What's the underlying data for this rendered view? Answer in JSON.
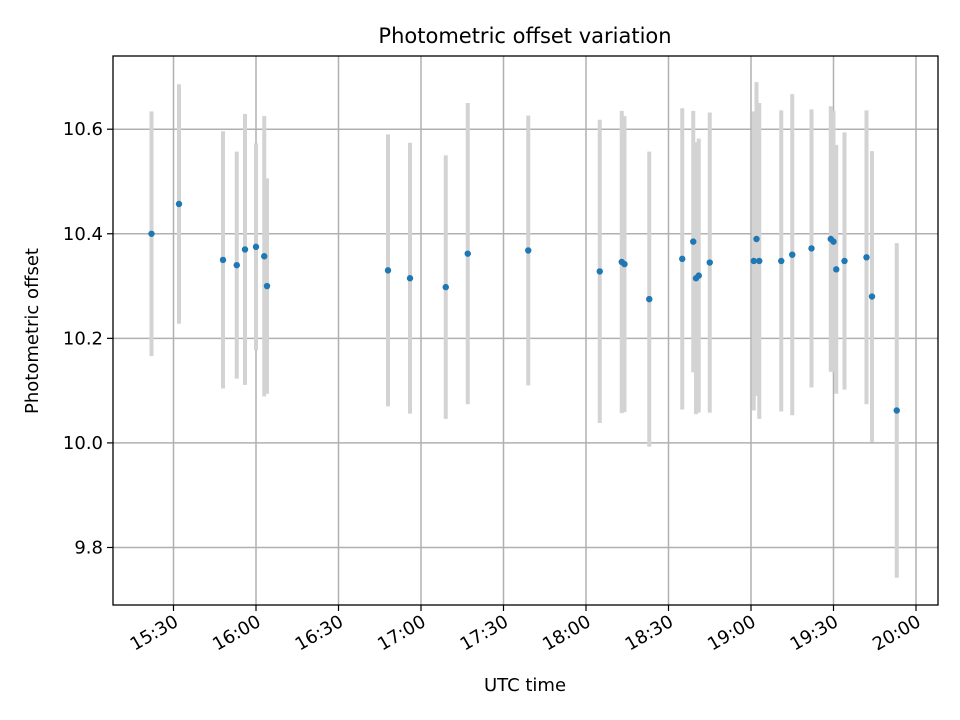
{
  "chart_data": {
    "type": "scatter",
    "title": "Photometric offset variation",
    "xlabel": "UTC time",
    "ylabel": "Photometric offset",
    "xlim": [
      "15:08",
      "20:08"
    ],
    "ylim": [
      9.69,
      10.74
    ],
    "grid": true,
    "x_tick_labels": [
      "15:30",
      "16:00",
      "16:30",
      "17:00",
      "17:30",
      "18:00",
      "18:30",
      "19:00",
      "19:30",
      "20:00"
    ],
    "y_tick_labels": [
      "9.8",
      "10.0",
      "10.2",
      "10.4",
      "10.6"
    ],
    "y_ticks": [
      9.8,
      10.0,
      10.2,
      10.4,
      10.6
    ],
    "colors": {
      "points": "#1f77b4",
      "errorbars": "#d3d3d3",
      "grid": "#b0b0b0"
    },
    "points": [
      {
        "x": "15:22",
        "y": 10.4,
        "yerr": 0.234
      },
      {
        "x": "15:32",
        "y": 10.457,
        "yerr": 0.229
      },
      {
        "x": "15:48",
        "y": 10.35,
        "yerr": 0.246
      },
      {
        "x": "15:53",
        "y": 10.34,
        "yerr": 0.217
      },
      {
        "x": "15:56",
        "y": 10.37,
        "yerr": 0.259
      },
      {
        "x": "16:00",
        "y": 10.375,
        "yerr": 0.198
      },
      {
        "x": "16:03",
        "y": 10.357,
        "yerr": 0.268
      },
      {
        "x": "16:04",
        "y": 10.3,
        "yerr": 0.206
      },
      {
        "x": "16:48",
        "y": 10.33,
        "yerr": 0.26
      },
      {
        "x": "16:56",
        "y": 10.315,
        "yerr": 0.259
      },
      {
        "x": "17:09",
        "y": 10.298,
        "yerr": 0.252
      },
      {
        "x": "17:17",
        "y": 10.362,
        "yerr": 0.288
      },
      {
        "x": "17:39",
        "y": 10.368,
        "yerr": 0.258
      },
      {
        "x": "18:05",
        "y": 10.328,
        "yerr": 0.29
      },
      {
        "x": "18:13",
        "y": 10.346,
        "yerr": 0.289
      },
      {
        "x": "18:14",
        "y": 10.342,
        "yerr": 0.283
      },
      {
        "x": "18:23",
        "y": 10.275,
        "yerr": 0.282
      },
      {
        "x": "18:35",
        "y": 10.352,
        "yerr": 0.288
      },
      {
        "x": "18:39",
        "y": 10.385,
        "yerr": 0.25
      },
      {
        "x": "18:40",
        "y": 10.315,
        "yerr": 0.26
      },
      {
        "x": "18:41",
        "y": 10.32,
        "yerr": 0.262
      },
      {
        "x": "18:45",
        "y": 10.345,
        "yerr": 0.287
      },
      {
        "x": "19:01",
        "y": 10.348,
        "yerr": 0.286
      },
      {
        "x": "19:02",
        "y": 10.39,
        "yerr": 0.3
      },
      {
        "x": "19:03",
        "y": 10.348,
        "yerr": 0.302
      },
      {
        "x": "19:11",
        "y": 10.348,
        "yerr": 0.288
      },
      {
        "x": "19:15",
        "y": 10.36,
        "yerr": 0.307
      },
      {
        "x": "19:22",
        "y": 10.372,
        "yerr": 0.266
      },
      {
        "x": "19:29",
        "y": 10.39,
        "yerr": 0.254
      },
      {
        "x": "19:30",
        "y": 10.385,
        "yerr": 0.25
      },
      {
        "x": "19:31",
        "y": 10.332,
        "yerr": 0.238
      },
      {
        "x": "19:34",
        "y": 10.348,
        "yerr": 0.246
      },
      {
        "x": "19:42",
        "y": 10.355,
        "yerr": 0.281
      },
      {
        "x": "19:44",
        "y": 10.28,
        "yerr": 0.278
      },
      {
        "x": "19:53",
        "y": 10.062,
        "yerr": 0.32
      }
    ]
  }
}
